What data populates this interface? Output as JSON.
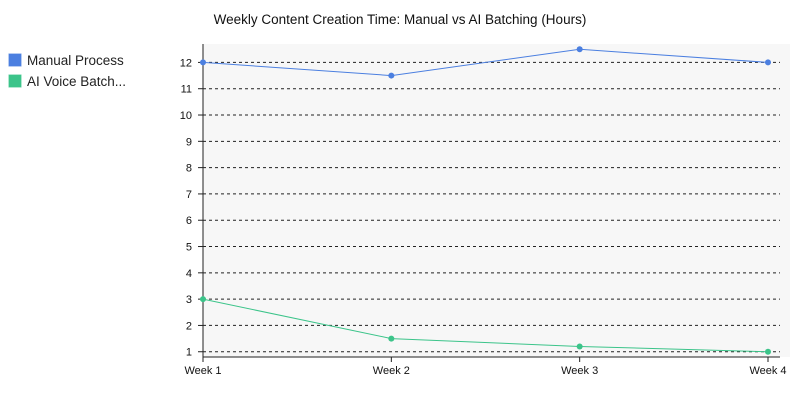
{
  "chart_data": {
    "type": "line",
    "title": "Weekly Content Creation Time: Manual vs AI Batching (Hours)",
    "xlabel": "",
    "ylabel": "",
    "categories": [
      "Week 1",
      "Week 2",
      "Week 3",
      "Week 4"
    ],
    "ylim": [
      0.8,
      12.7
    ],
    "yticks": [
      1,
      2,
      3,
      4,
      5,
      6,
      7,
      8,
      9,
      10,
      11,
      12
    ],
    "grid": true,
    "legend_position": "top-left",
    "series": [
      {
        "name": "Manual Process",
        "color": "#4b7fe0",
        "values": [
          12,
          11.5,
          12.5,
          12
        ]
      },
      {
        "name": "AI Voice Batch...",
        "color": "#3cc48a",
        "values": [
          3,
          1.5,
          1.2,
          1
        ]
      }
    ]
  }
}
